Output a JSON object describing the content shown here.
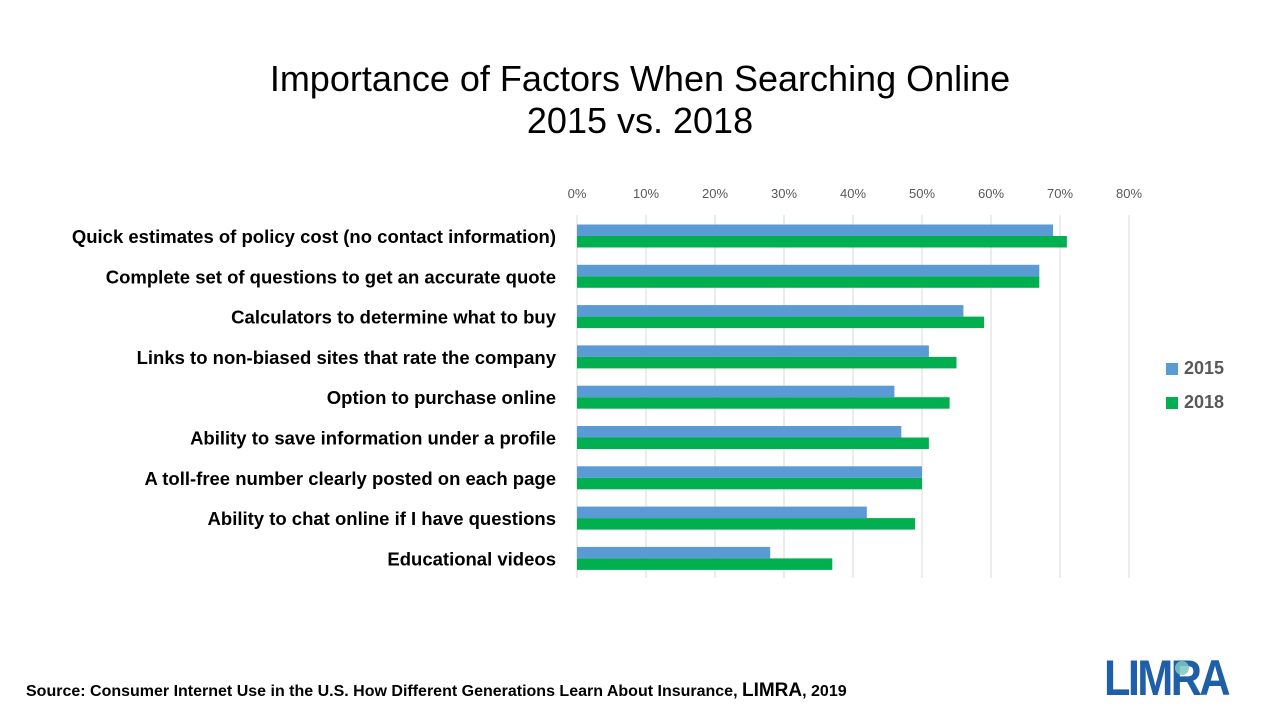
{
  "title_line1": "Importance of Factors When Searching Online",
  "title_line2": "2015 vs. 2018",
  "source": {
    "prefix": "Source: Consumer Internet Use in the U.S. How Different Generations Learn About Insurance, ",
    "brand": "LIMRA",
    "suffix": ", 2019"
  },
  "logo_text": "LIMRA",
  "colors": {
    "2015": "#5B9BD5",
    "2018": "#00B050",
    "grid": "#D9D9D9"
  },
  "chart_data": {
    "type": "bar",
    "orientation": "horizontal",
    "categories": [
      "Quick estimates of policy cost (no contact information)",
      "Complete set of questions to get an accurate quote",
      "Calculators to determine what to buy",
      "Links to non-biased sites that rate the company",
      "Option to purchase online",
      "Ability to save information under a profile",
      "A toll-free number clearly posted on each page",
      "Ability to chat online if I have questions",
      "Educational videos"
    ],
    "series": [
      {
        "name": "2015",
        "values": [
          0.69,
          0.67,
          0.56,
          0.51,
          0.46,
          0.47,
          0.5,
          0.42,
          0.28
        ]
      },
      {
        "name": "2018",
        "values": [
          0.71,
          0.67,
          0.59,
          0.55,
          0.54,
          0.51,
          0.5,
          0.49,
          0.37
        ]
      }
    ],
    "xlim": [
      0,
      0.8
    ],
    "xticks": [
      "0%",
      "10%",
      "20%",
      "30%",
      "40%",
      "50%",
      "60%",
      "70%",
      "80%"
    ],
    "xaxis_position": "top",
    "grid": true,
    "legend_position": "right"
  }
}
